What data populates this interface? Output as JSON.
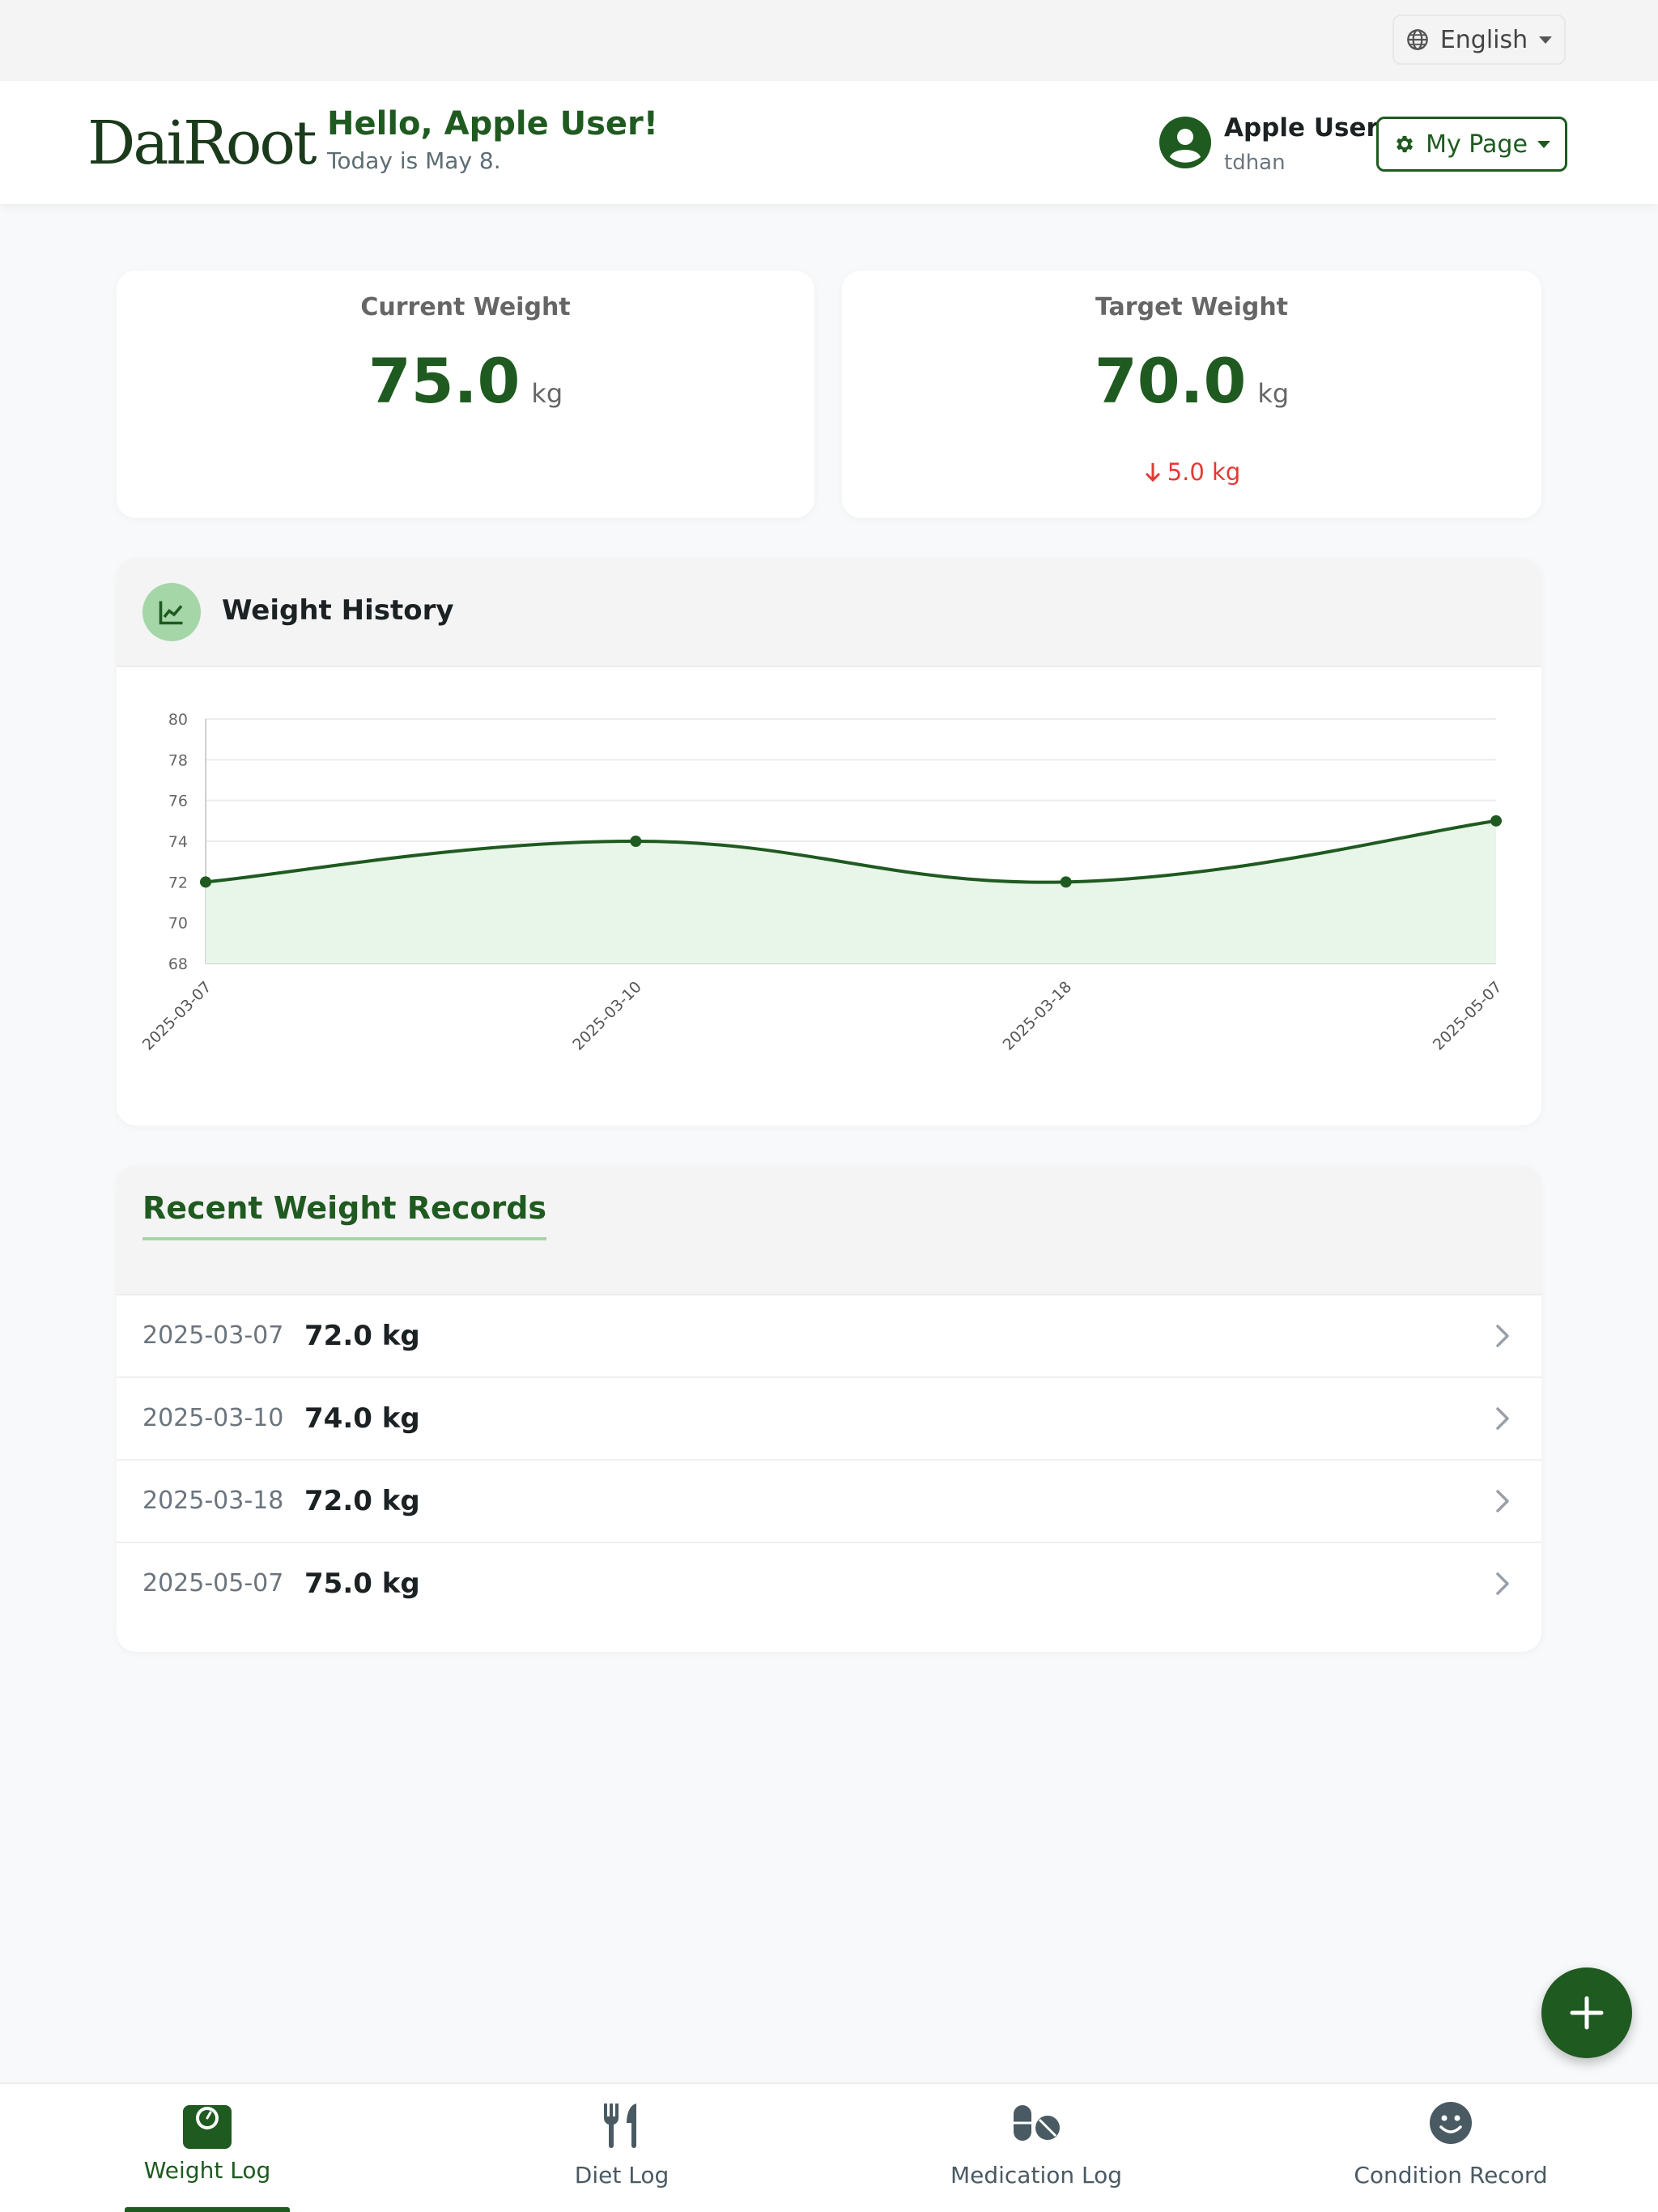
{
  "language": {
    "label": "English",
    "icon": "globe-icon"
  },
  "brand": {
    "logo": "DaiRoot"
  },
  "greeting": {
    "title": "Hello, Apple User!",
    "subtitle": "Today is May 8."
  },
  "user": {
    "name": "Apple User",
    "handle": "tdhan",
    "icon": "user-circle-icon"
  },
  "my_page": {
    "label": "My Page",
    "icon": "gear-icon"
  },
  "current_weight": {
    "label": "Current Weight",
    "value": "75.0",
    "unit": "kg"
  },
  "target_weight": {
    "label": "Target Weight",
    "value": "70.0",
    "unit": "kg",
    "difference": "5.0 kg",
    "difference_direction": "down"
  },
  "weight_history": {
    "title": "Weight History",
    "icon": "line-chart-icon"
  },
  "chart_data": {
    "type": "line",
    "categories": [
      "2025-03-07",
      "2025-03-10",
      "2025-03-18",
      "2025-05-07"
    ],
    "series": [
      {
        "values": [
          72,
          74,
          72,
          75
        ]
      }
    ],
    "ylim": [
      68,
      80
    ],
    "yticks": [
      68,
      70,
      72,
      74,
      76,
      78,
      80
    ],
    "grid": true,
    "area_fill": true,
    "colors": {
      "line": "#1f5a20",
      "fill": "#e8f5e9"
    }
  },
  "recent_records": {
    "title": "Recent Weight Records",
    "rows": [
      {
        "date": "2025-03-07",
        "value": "72.0 kg"
      },
      {
        "date": "2025-03-10",
        "value": "74.0 kg"
      },
      {
        "date": "2025-03-18",
        "value": "72.0 kg"
      },
      {
        "date": "2025-05-07",
        "value": "75.0 kg"
      }
    ]
  },
  "fab": {
    "icon": "plus-icon"
  },
  "nav": [
    {
      "label": "Weight Log",
      "icon": "scale-icon",
      "active": true
    },
    {
      "label": "Diet Log",
      "icon": "utensils-icon",
      "active": false
    },
    {
      "label": "Medication Log",
      "icon": "pills-icon",
      "active": false
    },
    {
      "label": "Condition Record",
      "icon": "smile-icon",
      "active": false
    }
  ],
  "colors": {
    "primary": "#1f5a20",
    "accent": "#a5d6a7",
    "negative": "#e53935"
  }
}
